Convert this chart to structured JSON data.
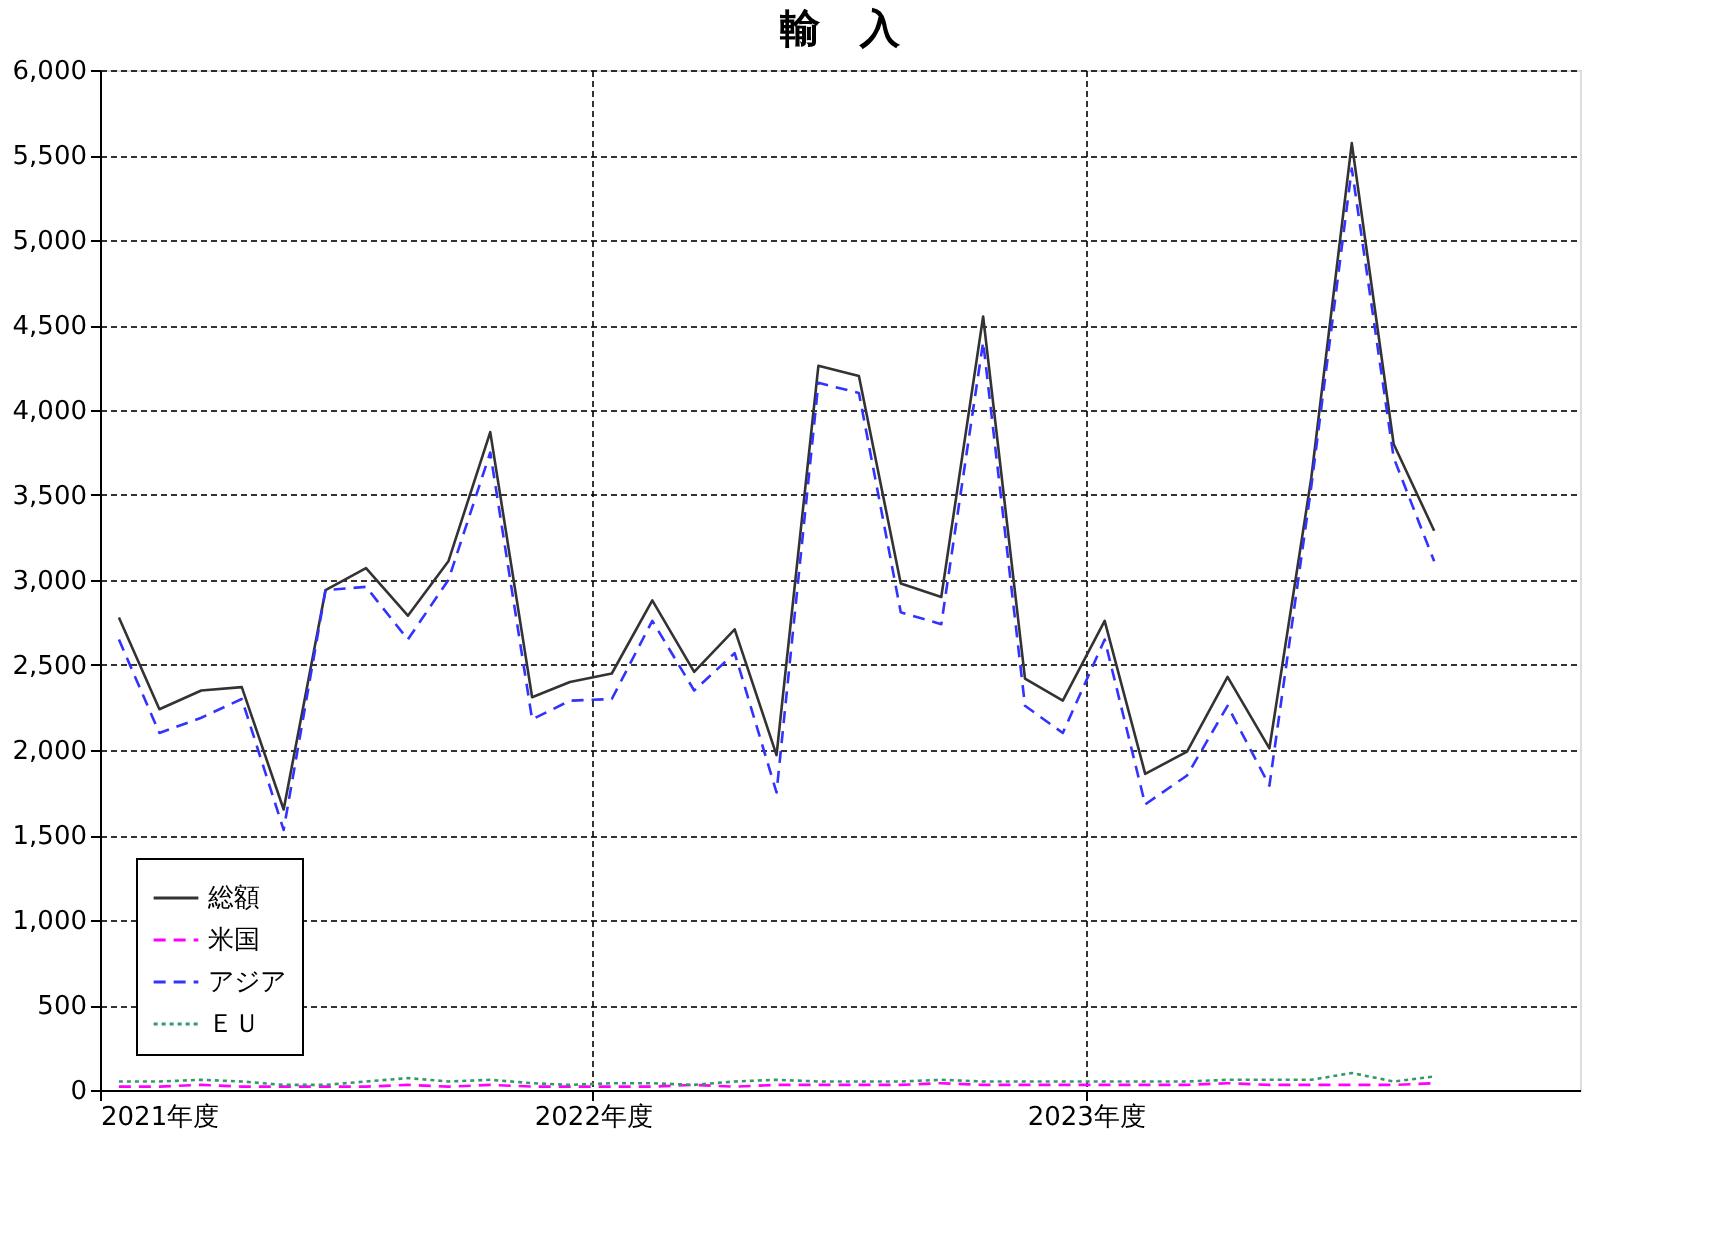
{
  "chart_data": {
    "type": "line",
    "title": "輸　入",
    "x": [
      "2021-04-15",
      "2021-05-15",
      "2021-06-15",
      "2021-07-15",
      "2021-08-15",
      "2021-09-15",
      "2021-10-15",
      "2021-11-15",
      "2021-12-15",
      "2022-01-15",
      "2022-02-15",
      "2022-03-15",
      "2022-04-15",
      "2022-05-15",
      "2022-06-15",
      "2022-07-15",
      "2022-08-15",
      "2022-09-15",
      "2022-10-15",
      "2022-11-15",
      "2022-12-15",
      "2023-01-15",
      "2023-02-15",
      "2023-03-15",
      "2023-04-15",
      "2023-05-15",
      "2023-06-15",
      "2023-07-15",
      "2023-08-15",
      "2023-09-15",
      "2023-10-15",
      "2023-11-15",
      "2023-12-15"
    ],
    "series": [
      {
        "name": "総額",
        "color": "#333333",
        "line_style": "solid",
        "values": [
          2780,
          2240,
          2350,
          2370,
          1650,
          2940,
          3070,
          2790,
          3110,
          3870,
          2310,
          2400,
          2450,
          2880,
          2460,
          2710,
          1970,
          4260,
          4200,
          2980,
          2900,
          4550,
          2420,
          2290,
          2760,
          1860,
          1990,
          2430,
          2010,
          3600,
          5570,
          3800,
          3290
        ]
      },
      {
        "name": "米国",
        "color": "#ff00ff",
        "line_style": "dashed",
        "values": [
          20,
          20,
          30,
          20,
          20,
          20,
          20,
          30,
          20,
          30,
          20,
          20,
          20,
          20,
          30,
          20,
          30,
          30,
          30,
          30,
          40,
          30,
          30,
          30,
          30,
          30,
          30,
          40,
          30,
          30,
          30,
          30,
          40
        ]
      },
      {
        "name": "アジア",
        "color": "#3333ff",
        "line_style": "dashed",
        "values": [
          2650,
          2100,
          2190,
          2300,
          1530,
          2940,
          2960,
          2650,
          3000,
          3750,
          2180,
          2290,
          2300,
          2760,
          2350,
          2570,
          1750,
          4160,
          4100,
          2810,
          2740,
          4400,
          2260,
          2100,
          2650,
          1680,
          1850,
          2260,
          1790,
          3550,
          5420,
          3720,
          3110
        ]
      },
      {
        "name": "ＥＵ",
        "color": "#339966",
        "line_style": "dotted",
        "values": [
          50,
          50,
          60,
          50,
          30,
          30,
          50,
          70,
          50,
          60,
          40,
          30,
          40,
          40,
          30,
          50,
          60,
          50,
          50,
          50,
          60,
          50,
          50,
          50,
          50,
          50,
          50,
          60,
          60,
          60,
          100,
          50,
          80
        ]
      }
    ],
    "xlim": [
      "2021-04-01",
      "2024-04-01"
    ],
    "xticks": [
      {
        "value": "2021-04-01",
        "label": "2021年度"
      },
      {
        "value": "2022-04-01",
        "label": "2022年度"
      },
      {
        "value": "2023-04-01",
        "label": "2023年度"
      }
    ],
    "ylim": [
      0,
      6000
    ],
    "yticks": [
      {
        "value": 0,
        "label": "0"
      },
      {
        "value": 500,
        "label": "500"
      },
      {
        "value": 1000,
        "label": "1,000"
      },
      {
        "value": 1500,
        "label": "1,500"
      },
      {
        "value": 2000,
        "label": "2,000"
      },
      {
        "value": 2500,
        "label": "2,500"
      },
      {
        "value": 3000,
        "label": "3,000"
      },
      {
        "value": 3500,
        "label": "3,500"
      },
      {
        "value": 4000,
        "label": "4,000"
      },
      {
        "value": 4500,
        "label": "4,500"
      },
      {
        "value": 5000,
        "label": "5,000"
      },
      {
        "value": 5500,
        "label": "5,500"
      },
      {
        "value": 6000,
        "label": "6,000"
      }
    ],
    "grid": true,
    "legend": "bottom left",
    "marker": "none"
  }
}
